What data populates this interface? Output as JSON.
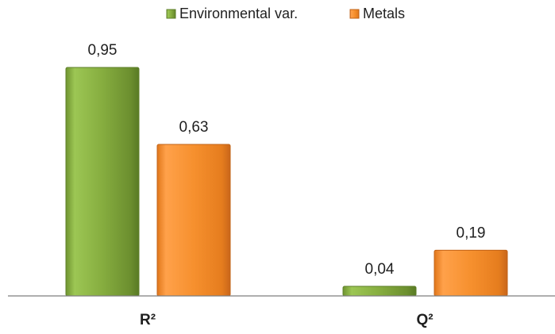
{
  "chart_data": {
    "type": "bar",
    "categories": [
      "R²",
      "Q²"
    ],
    "series": [
      {
        "name": "Environmental var.",
        "values": [
          0.95,
          0.04
        ],
        "labels": [
          "0,95",
          "0,04"
        ]
      },
      {
        "name": "Metals",
        "values": [
          0.63,
          0.19
        ],
        "labels": [
          "0,63",
          "0,19"
        ]
      }
    ],
    "ylim": [
      0,
      1.0
    ],
    "grid": false,
    "legend_position": "top-center"
  },
  "colors": {
    "series_0": "#8cb743",
    "series_0_dark": "#5e7f2a",
    "series_1": "#f28c28",
    "series_1_dark": "#c2641a",
    "axis": "#7f7f7f"
  }
}
